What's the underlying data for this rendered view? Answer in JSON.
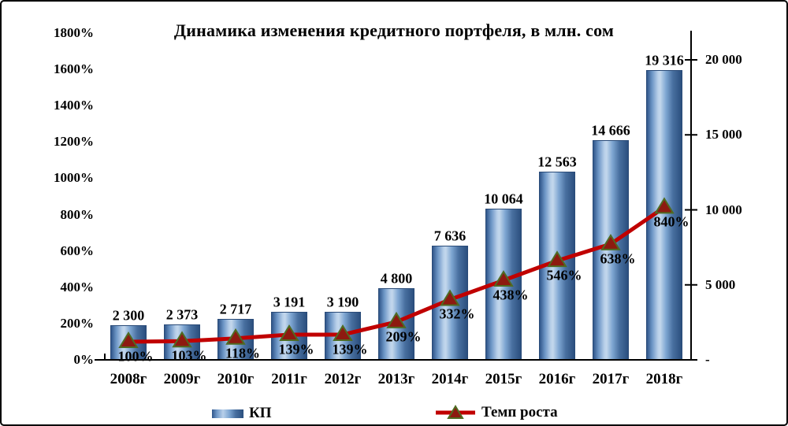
{
  "title": "Динамика изменения кредитного портфеля, в млн. сом",
  "chart_data": {
    "type": "bar",
    "subtype": "bar-and-line-combo",
    "categories": [
      "2008г",
      "2009г",
      "2010г",
      "2011г",
      "2012г",
      "2013г",
      "2014г",
      "2015г",
      "2016г",
      "2017г",
      "2018г"
    ],
    "series": [
      {
        "name": "КП",
        "chart": "bar",
        "axis": "right",
        "values": [
          2300,
          2373,
          2717,
          3191,
          3190,
          4800,
          7636,
          10064,
          12563,
          14666,
          19316
        ],
        "labels": [
          "2 300",
          "2 373",
          "2 717",
          "3 191",
          "3 190",
          "4 800",
          "7 636",
          "10 064",
          "12 563",
          "14 666",
          "19 316"
        ]
      },
      {
        "name": "Темп роста",
        "chart": "line",
        "axis": "left",
        "values": [
          100,
          103,
          118,
          139,
          139,
          209,
          332,
          438,
          546,
          638,
          840
        ],
        "labels": [
          "100%",
          "103%",
          "118%",
          "139%",
          "139%",
          "209%",
          "332%",
          "438%",
          "546%",
          "638%",
          "840%"
        ]
      }
    ],
    "axes": {
      "left": {
        "min": 0,
        "max": 1800,
        "step": 200,
        "tick_labels": [
          "0%",
          "200%",
          "400%",
          "600%",
          "800%",
          "1000%",
          "1200%",
          "1400%",
          "1600%",
          "1800%"
        ]
      },
      "right": {
        "min": 0,
        "max": 20000,
        "step": 5000,
        "tick_labels": [
          "-",
          "5 000",
          "10 000",
          "15 000",
          "20 000"
        ]
      }
    },
    "legend": {
      "position": "bottom",
      "entries": [
        "КП",
        "Темп роста"
      ]
    },
    "grid": false,
    "colors": {
      "bar_dark": "#2b4f7e",
      "bar_light": "#b9d0ea",
      "line": "#c00000",
      "marker_fill": "#8d1a10",
      "marker_border": "#4f6b22",
      "axis": "#000000",
      "text": "#000000",
      "background": "#ffffff"
    }
  }
}
